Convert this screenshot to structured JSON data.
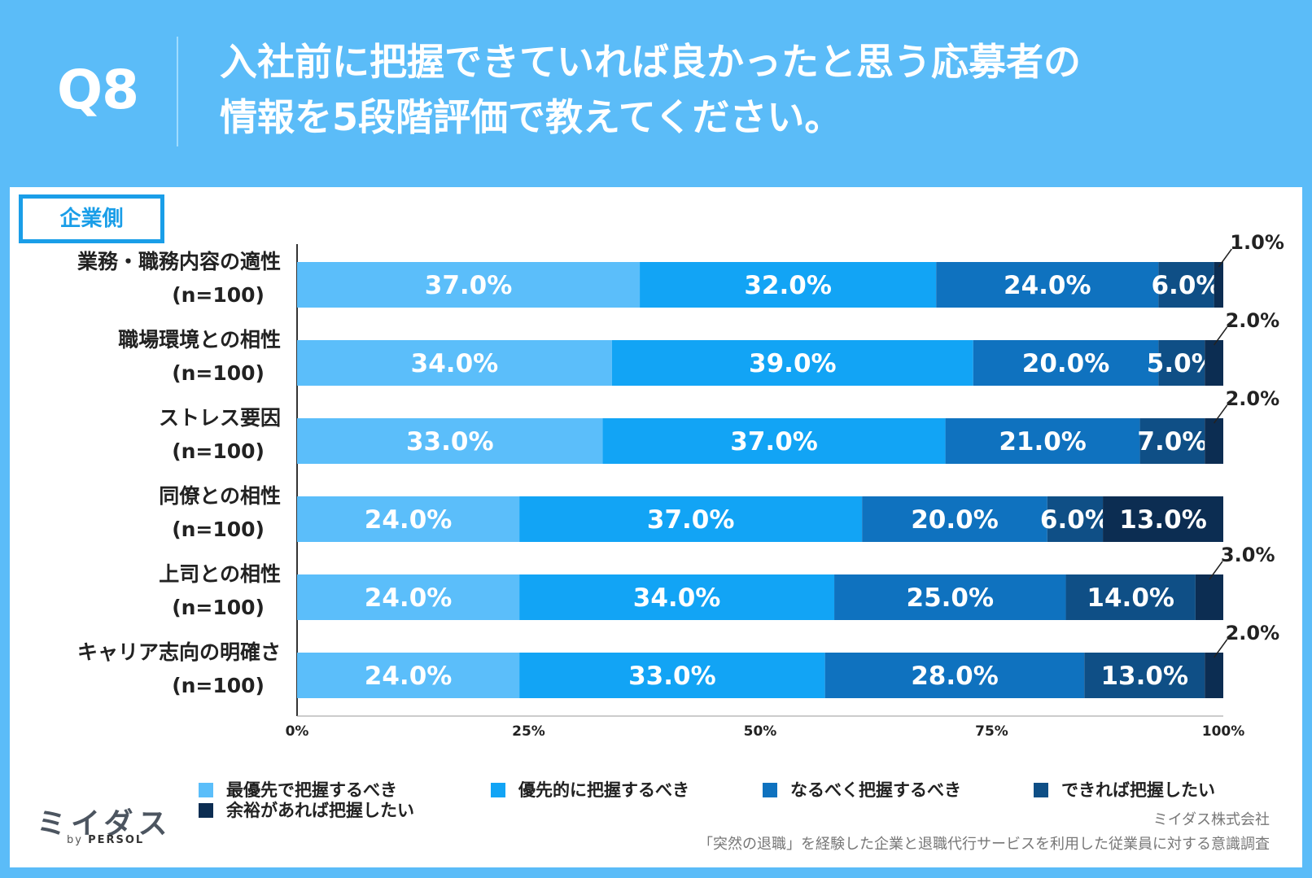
{
  "header": {
    "question": "Q8",
    "title_line1": "入社前に把握できていれば良かったと思う応募者の",
    "title_line2": "情報を5段階評価で教えてください。"
  },
  "tag": "企業側",
  "colors": [
    "#5bbefa",
    "#12a4f5",
    "#0f72bf",
    "#0f4f86",
    "#0c2d52"
  ],
  "chart_data": {
    "type": "bar",
    "orientation": "horizontal-stacked",
    "categories": [
      {
        "label": "業務・職務内容の適性",
        "n": "(n=100)"
      },
      {
        "label": "職場環境との相性",
        "n": "(n=100)"
      },
      {
        "label": "ストレス要因",
        "n": "(n=100)"
      },
      {
        "label": "同僚との相性",
        "n": "(n=100)"
      },
      {
        "label": "上司との相性",
        "n": "(n=100)"
      },
      {
        "label": "キャリア志向の明確さ",
        "n": "(n=100)"
      }
    ],
    "series": [
      {
        "name": "最優先で把握するべき",
        "values": [
          37.0,
          34.0,
          33.0,
          24.0,
          24.0,
          24.0
        ]
      },
      {
        "name": "優先的に把握するべき",
        "values": [
          32.0,
          39.0,
          37.0,
          37.0,
          34.0,
          33.0
        ]
      },
      {
        "name": "なるべく把握するべき",
        "values": [
          24.0,
          20.0,
          21.0,
          20.0,
          25.0,
          28.0
        ]
      },
      {
        "name": "できれば把握したい",
        "values": [
          6.0,
          5.0,
          7.0,
          6.0,
          14.0,
          13.0
        ]
      },
      {
        "name": "余裕があれば把握したい",
        "values": [
          1.0,
          2.0,
          2.0,
          13.0,
          3.0,
          2.0
        ]
      }
    ],
    "xlim": [
      0,
      100
    ],
    "xticks": [
      "0%",
      "25%",
      "50%",
      "75%",
      "100%"
    ],
    "value_suffix": "%"
  },
  "footer": {
    "logo": "ミイダス",
    "by": "by",
    "persol": "PERSOL",
    "company": "ミイダス株式会社",
    "survey": "「突然の退職」を経験した企業と退職代行サービスを利用した従業員に対する意識調査"
  }
}
